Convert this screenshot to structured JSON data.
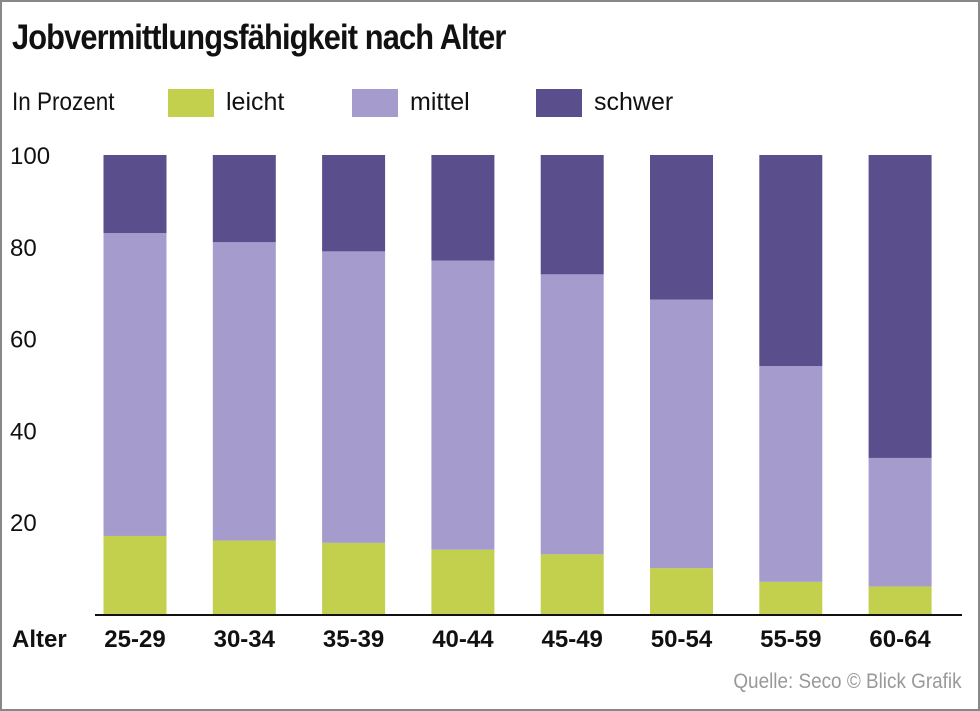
{
  "chart_data": {
    "type": "bar",
    "stacked": true,
    "title": "Jobvermittlungsfähigkeit nach Alter",
    "ylabel": "In Prozent",
    "xlabel": "Alter",
    "ylim": [
      0,
      100
    ],
    "yticks": [
      20,
      40,
      60,
      80,
      100
    ],
    "categories": [
      "25-29",
      "30-34",
      "35-39",
      "40-44",
      "45-49",
      "50-54",
      "55-59",
      "60-64"
    ],
    "series": [
      {
        "name": "leicht",
        "color": "#c3d04e",
        "values": [
          17,
          16,
          15.5,
          14,
          13,
          10,
          7,
          6
        ]
      },
      {
        "name": "mittel",
        "color": "#a59ccd",
        "values": [
          66,
          65,
          63.5,
          63,
          61,
          58.5,
          47,
          28
        ]
      },
      {
        "name": "schwer",
        "color": "#5a4f8c",
        "values": [
          17,
          19,
          21,
          23,
          26,
          31.5,
          46,
          66
        ]
      }
    ],
    "legend_position": "top",
    "grid": false
  },
  "source": "Quelle: Seco   © Blick Grafik"
}
